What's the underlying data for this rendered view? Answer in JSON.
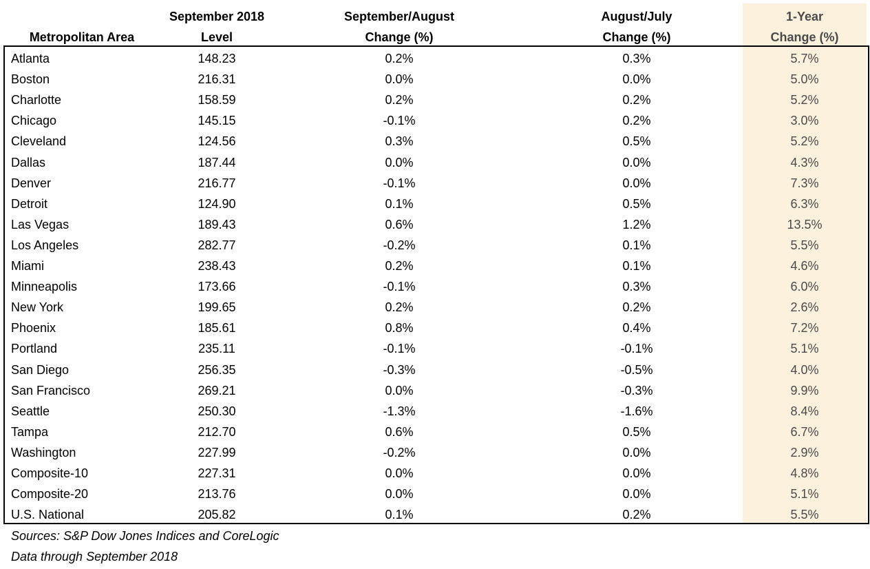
{
  "chart_data": {
    "type": "table",
    "columns": [
      {
        "top": "",
        "bottom": "Metropolitan Area"
      },
      {
        "top": "September 2018",
        "bottom": "Level"
      },
      {
        "top": "September/August",
        "bottom": "Change (%)"
      },
      {
        "top": "August/July",
        "bottom": "Change (%)"
      },
      {
        "top": "1-Year",
        "bottom": "Change (%)"
      }
    ],
    "rows": [
      [
        "Atlanta",
        "148.23",
        "0.2%",
        "0.3%",
        "5.7%"
      ],
      [
        "Boston",
        "216.31",
        "0.0%",
        "0.0%",
        "5.0%"
      ],
      [
        "Charlotte",
        "158.59",
        "0.2%",
        "0.2%",
        "5.2%"
      ],
      [
        "Chicago",
        "145.15",
        "-0.1%",
        "0.2%",
        "3.0%"
      ],
      [
        "Cleveland",
        "124.56",
        "0.3%",
        "0.5%",
        "5.2%"
      ],
      [
        "Dallas",
        "187.44",
        "0.0%",
        "0.0%",
        "4.3%"
      ],
      [
        "Denver",
        "216.77",
        "-0.1%",
        "0.0%",
        "7.3%"
      ],
      [
        "Detroit",
        "124.90",
        "0.1%",
        "0.5%",
        "6.3%"
      ],
      [
        "Las Vegas",
        "189.43",
        "0.6%",
        "1.2%",
        "13.5%"
      ],
      [
        "Los Angeles",
        "282.77",
        "-0.2%",
        "0.1%",
        "5.5%"
      ],
      [
        "Miami",
        "238.43",
        "0.2%",
        "0.1%",
        "4.6%"
      ],
      [
        "Minneapolis",
        "173.66",
        "-0.1%",
        "0.3%",
        "6.0%"
      ],
      [
        "New York",
        "199.65",
        "0.2%",
        "0.2%",
        "2.6%"
      ],
      [
        "Phoenix",
        "185.61",
        "0.8%",
        "0.4%",
        "7.2%"
      ],
      [
        "Portland",
        "235.11",
        "-0.1%",
        "-0.1%",
        "5.1%"
      ],
      [
        "San Diego",
        "256.35",
        "-0.3%",
        "-0.5%",
        "4.0%"
      ],
      [
        "San Francisco",
        "269.21",
        "0.0%",
        "-0.3%",
        "9.9%"
      ],
      [
        "Seattle",
        "250.30",
        "-1.3%",
        "-1.6%",
        "8.4%"
      ],
      [
        "Tampa",
        "212.70",
        "0.6%",
        "0.5%",
        "6.7%"
      ],
      [
        "Washington",
        "227.99",
        "-0.2%",
        "0.0%",
        "2.9%"
      ],
      [
        "Composite-10",
        "227.31",
        "0.0%",
        "0.0%",
        "4.8%"
      ],
      [
        "Composite-20",
        "213.76",
        "0.0%",
        "0.0%",
        "5.1%"
      ],
      [
        "U.S. National",
        "205.82",
        "0.1%",
        "0.2%",
        "5.5%"
      ]
    ],
    "highlight_column": 4,
    "highlight_color": "#fbf1dd"
  },
  "footnotes": [
    "Sources: S&P Dow Jones Indices and CoreLogic",
    "Data through September 2018"
  ]
}
